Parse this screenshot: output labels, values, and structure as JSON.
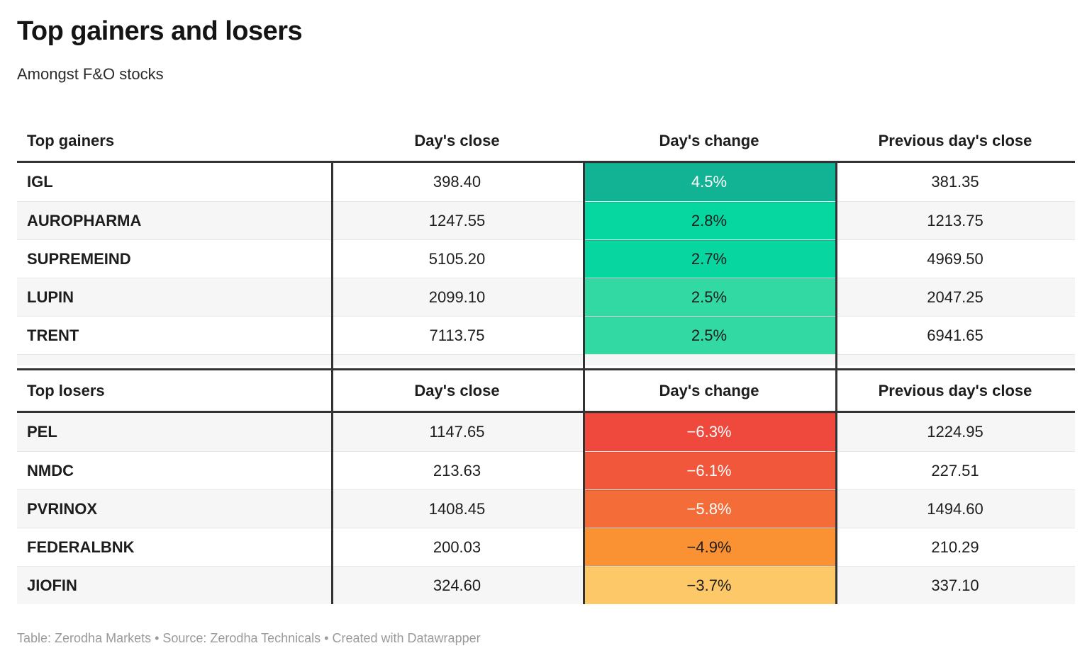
{
  "chart_data": {
    "type": "table",
    "title": "Top gainers and losers",
    "subtitle": "Amongst F&O stocks",
    "footer": "Table: Zerodha Markets • Source: Zerodha Technicals • Created with Datawrapper",
    "layout_hints": {
      "sections": [
        "Top gainers",
        "Top losers"
      ],
      "change_column_style": "heatmap-colored cells, green scale for gainers, red-orange-yellow scale for losers",
      "row_striping": [
        "#ffffff",
        "#f6f6f6"
      ],
      "heavy_border_color": "#333333",
      "thin_divider_color": "#e7e7e7"
    },
    "tables": [
      {
        "section": "gainers",
        "columns": [
          "Top gainers",
          "Day's close",
          "Day's change",
          "Previous day's close"
        ],
        "rows": [
          {
            "symbol": "IGL",
            "close": "398.40",
            "change": "4.5%",
            "change_value": 4.5,
            "prev": "381.35",
            "bg": "#12b394",
            "fg": "#ffffff"
          },
          {
            "symbol": "AUROPHARMA",
            "close": "1247.55",
            "change": "2.8%",
            "change_value": 2.8,
            "prev": "1213.75",
            "bg": "#06d6a0",
            "fg": "#1d1d1d"
          },
          {
            "symbol": "SUPREMEIND",
            "close": "5105.20",
            "change": "2.7%",
            "change_value": 2.7,
            "prev": "4969.50",
            "bg": "#07d6a0",
            "fg": "#1d1d1d"
          },
          {
            "symbol": "LUPIN",
            "close": "2099.10",
            "change": "2.5%",
            "change_value": 2.5,
            "prev": "2047.25",
            "bg": "#33d9a3",
            "fg": "#1d1d1d"
          },
          {
            "symbol": "TRENT",
            "close": "7113.75",
            "change": "2.5%",
            "change_value": 2.5,
            "prev": "6941.65",
            "bg": "#33d9a3",
            "fg": "#1d1d1d"
          }
        ]
      },
      {
        "section": "losers",
        "columns": [
          "Top losers",
          "Day's close",
          "Day's change",
          "Previous day's close"
        ],
        "rows": [
          {
            "symbol": "PEL",
            "close": "1147.65",
            "change": "−6.3%",
            "change_value": -6.3,
            "prev": "1224.95",
            "bg": "#ef483c",
            "fg": "#ffffff"
          },
          {
            "symbol": "NMDC",
            "close": "213.63",
            "change": "−6.1%",
            "change_value": -6.1,
            "prev": "227.51",
            "bg": "#f1573a",
            "fg": "#ffffff"
          },
          {
            "symbol": "PVRINOX",
            "close": "1408.45",
            "change": "−5.8%",
            "change_value": -5.8,
            "prev": "1494.60",
            "bg": "#f46d38",
            "fg": "#ffffff"
          },
          {
            "symbol": "FEDERALBNK",
            "close": "200.03",
            "change": "−4.9%",
            "change_value": -4.9,
            "prev": "210.29",
            "bg": "#fa9132",
            "fg": "#1d1d1d"
          },
          {
            "symbol": "JIOFIN",
            "close": "324.60",
            "change": "−3.7%",
            "change_value": -3.7,
            "prev": "337.10",
            "bg": "#fdc968",
            "fg": "#1d1d1d"
          }
        ]
      }
    ]
  }
}
